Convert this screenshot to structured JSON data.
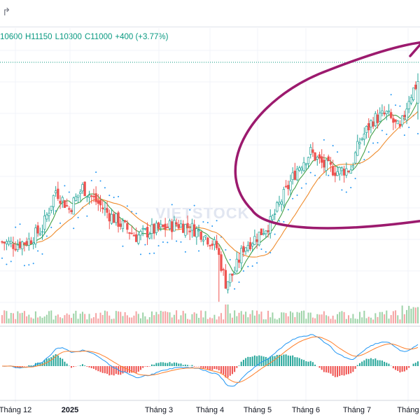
{
  "toolbar": {
    "redo_icon": "redo-arrow-icon"
  },
  "ohlc": {
    "open": "10600",
    "high": "H11150",
    "low": "L10300",
    "close": "C11000",
    "change": "+400 (+3.77%)",
    "color": "#089981"
  },
  "watermark": "VIETSTOCK",
  "colors": {
    "up": "#26a69a",
    "down": "#ef5350",
    "ma_fast": "#43a047",
    "ma_slow": "#ef8c2e",
    "sar": "#2196f3",
    "macd": "#2196f3",
    "signal": "#ff7f2a",
    "annotation": "#9c1a6e"
  },
  "chart_data": {
    "type": "candlestick",
    "x_labels": [
      {
        "label": "Tháng 12",
        "bold": false
      },
      {
        "label": "2025",
        "bold": true
      },
      {
        "label": "Tháng 3",
        "bold": false
      },
      {
        "label": "Tháng 4",
        "bold": false
      },
      {
        "label": "Tháng 5",
        "bold": false
      },
      {
        "label": "Tháng 6",
        "bold": false
      },
      {
        "label": "Tháng 7",
        "bold": false
      },
      {
        "label": "Tháng",
        "bold": false
      }
    ],
    "last_bar": {
      "open": 10600,
      "high": 11150,
      "low": 10300,
      "close": 11000
    },
    "price_path": [
      [
        0,
        8050
      ],
      [
        6,
        8000
      ],
      [
        12,
        8080
      ],
      [
        18,
        8300
      ],
      [
        24,
        9000
      ],
      [
        30,
        8650
      ],
      [
        36,
        9050
      ],
      [
        42,
        8800
      ],
      [
        48,
        8550
      ],
      [
        54,
        8350
      ],
      [
        60,
        8150
      ],
      [
        66,
        8250
      ],
      [
        72,
        8300
      ],
      [
        78,
        8380
      ],
      [
        84,
        8320
      ],
      [
        90,
        8200
      ],
      [
        96,
        7950
      ],
      [
        100,
        7300
      ],
      [
        104,
        7500
      ],
      [
        108,
        7950
      ],
      [
        114,
        8150
      ],
      [
        120,
        8400
      ],
      [
        126,
        8900
      ],
      [
        132,
        9400
      ],
      [
        138,
        9700
      ],
      [
        144,
        9450
      ],
      [
        150,
        9350
      ],
      [
        156,
        9400
      ],
      [
        160,
        9900
      ],
      [
        166,
        10300
      ],
      [
        172,
        10400
      ],
      [
        178,
        10100
      ],
      [
        182,
        10700
      ],
      [
        186,
        11000
      ]
    ],
    "n_bars": 187,
    "ylim": [
      6900,
      11700
    ],
    "overlays": [
      "moving-average-fast",
      "moving-average-slow",
      "parabolic-sar"
    ],
    "panes": [
      "price",
      "volume",
      "macd"
    ]
  }
}
